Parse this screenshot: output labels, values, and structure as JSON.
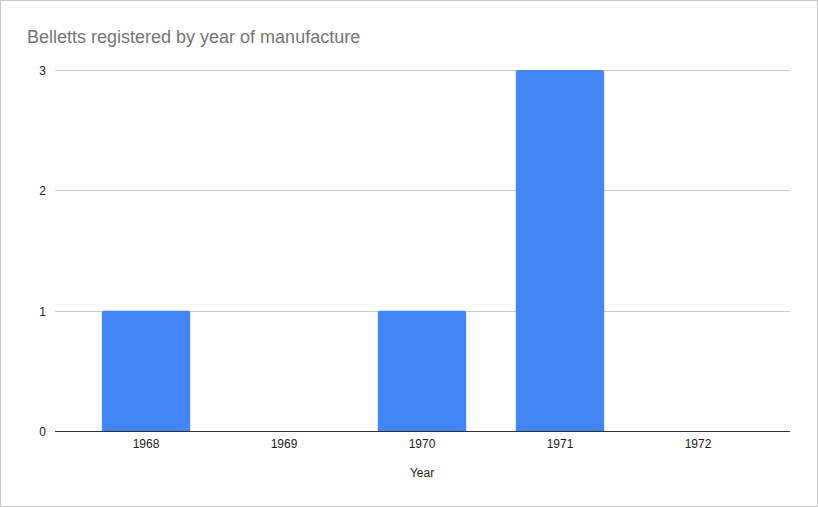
{
  "chart_data": {
    "type": "bar",
    "title": "Belletts registered by year of manufacture",
    "x_label": "Year",
    "categories": [
      "1968",
      "1969",
      "1970",
      "1971",
      "1972"
    ],
    "values": [
      1,
      0,
      1,
      3,
      0
    ],
    "color": "#4285f4",
    "ylim": [
      0,
      3
    ],
    "yticks": [
      0,
      1,
      2,
      3
    ],
    "grid": true
  }
}
